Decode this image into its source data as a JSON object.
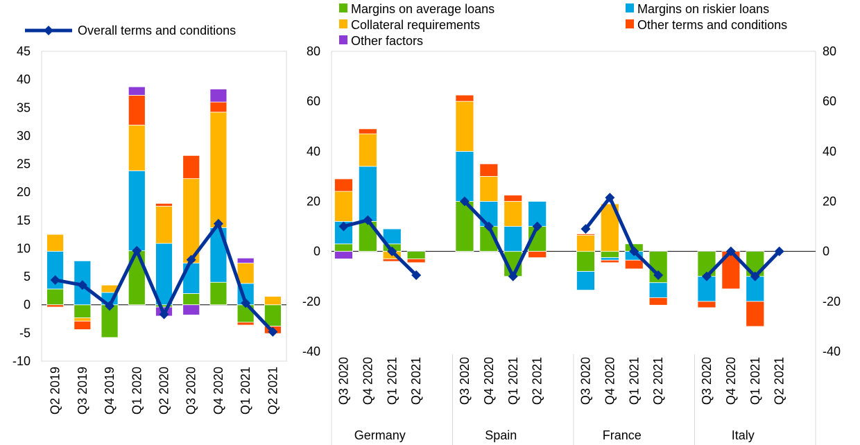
{
  "colors": {
    "margins_average": "#5cb800",
    "margins_riskier": "#00a6e2",
    "collateral": "#ffb400",
    "other_terms": "#ff4b00",
    "other_factors": "#8c3bd6",
    "overall": "#003299",
    "axis": "#000000",
    "frame": "#d9d9d9"
  },
  "legend": {
    "overall": "Overall terms and conditions",
    "margins_average": "Margins on average loans",
    "margins_riskier": "Margins on riskier loans",
    "collateral": "Collateral requirements",
    "other_terms": "Other terms and conditions",
    "other_factors": "Other factors"
  },
  "chart_data": [
    {
      "type": "bar",
      "stacked": true,
      "categories": [
        "Q2 2019",
        "Q3 2019",
        "Q4 2019",
        "Q1 2020",
        "Q2 2020",
        "Q3 2020",
        "Q4 2020",
        "Q1 2021",
        "Q2 2021"
      ],
      "ylim": [
        -10,
        45
      ],
      "yticks": [
        -10,
        -5,
        0,
        5,
        10,
        15,
        20,
        25,
        30,
        35,
        40,
        45
      ],
      "series": [
        {
          "key": "margins_average",
          "name": "Margins on average loans",
          "values": [
            2.8,
            -2.3,
            -5.8,
            9.6,
            -0.4,
            2.0,
            4.0,
            -3.1,
            -3.8
          ]
        },
        {
          "key": "margins_riskier",
          "name": "Margins on riskier loans",
          "values": [
            6.7,
            7.8,
            2.2,
            14.2,
            10.9,
            5.4,
            9.7,
            3.8,
            0.0
          ]
        },
        {
          "key": "collateral",
          "name": "Collateral requirements",
          "values": [
            3.0,
            -0.6,
            1.3,
            8.1,
            6.6,
            15.0,
            20.5,
            3.6,
            1.5
          ]
        },
        {
          "key": "other_terms",
          "name": "Other terms and conditions",
          "values": [
            -0.4,
            -1.5,
            0.0,
            5.3,
            0.5,
            4.1,
            1.8,
            -0.5,
            -1.3
          ]
        },
        {
          "key": "other_factors",
          "name": "Other factors",
          "values": [
            0.0,
            0.0,
            0.0,
            1.5,
            -1.6,
            -1.8,
            2.3,
            0.9,
            0.0
          ]
        }
      ],
      "line": {
        "key": "overall",
        "name": "Overall terms and conditions",
        "values": [
          4.4,
          3.5,
          -0.2,
          9.6,
          -1.7,
          8.0,
          14.4,
          0.3,
          -4.8
        ]
      }
    },
    {
      "type": "bar",
      "stacked": true,
      "groups": [
        "Germany",
        "Spain",
        "France",
        "Italy"
      ],
      "categories": [
        "Q3 2020",
        "Q4 2020",
        "Q1 2021",
        "Q2 2021"
      ],
      "ylim": [
        -40,
        80
      ],
      "yticks": [
        -40,
        -20,
        0,
        20,
        40,
        60,
        80
      ],
      "group_data": [
        {
          "name": "Germany",
          "series": {
            "margins_average": [
              3,
              12,
              3,
              -3
            ],
            "margins_riskier": [
              9,
              22,
              6,
              0
            ],
            "collateral": [
              12,
              13,
              -3,
              0
            ],
            "other_terms": [
              5,
              2,
              -1,
              -1.5
            ],
            "other_factors": [
              -3,
              0,
              0,
              0
            ]
          },
          "line": [
            10,
            12.5,
            0,
            -9.5
          ]
        },
        {
          "name": "Spain",
          "series": {
            "margins_average": [
              20,
              10,
              -10,
              10
            ],
            "margins_riskier": [
              20,
              10,
              10,
              10
            ],
            "collateral": [
              20,
              10,
              10,
              0
            ],
            "other_terms": [
              2.5,
              5,
              2.5,
              -2.5
            ],
            "other_factors": [
              0,
              0,
              0,
              0
            ]
          },
          "line": [
            20,
            10,
            -10,
            10
          ]
        },
        {
          "name": "France",
          "series": {
            "margins_average": [
              -8,
              -2.5,
              3,
              -12.5
            ],
            "margins_riskier": [
              -7.5,
              -1,
              -3.5,
              -6
            ],
            "collateral": [
              6.5,
              19,
              0,
              0
            ],
            "other_terms": [
              0.5,
              -1,
              -3.5,
              -3
            ],
            "other_factors": [
              0,
              0,
              0,
              0
            ]
          },
          "line": [
            9,
            21.5,
            0,
            -9.5
          ]
        },
        {
          "name": "Italy",
          "series": {
            "margins_average": [
              -10,
              0,
              -10,
              0
            ],
            "margins_riskier": [
              -10,
              0,
              -10,
              0
            ],
            "collateral": [
              0,
              0,
              0,
              0
            ],
            "other_terms": [
              -2.5,
              -15,
              -10,
              0
            ],
            "other_factors": [
              0,
              0,
              0,
              0
            ]
          },
          "line": [
            -10,
            0,
            -10,
            0
          ]
        }
      ]
    }
  ]
}
